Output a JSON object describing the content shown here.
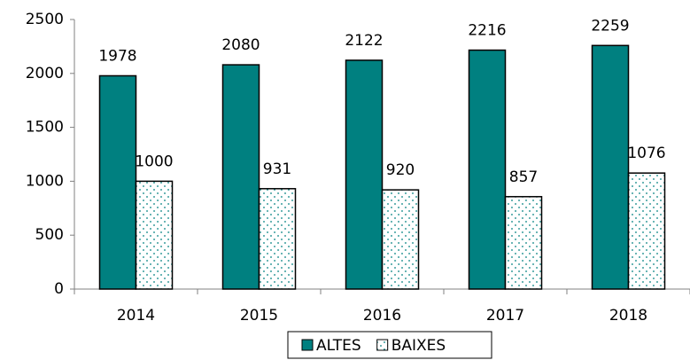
{
  "chart_data": {
    "type": "bar",
    "categories": [
      "2014",
      "2015",
      "2016",
      "2017",
      "2018"
    ],
    "series": [
      {
        "name": "ALTES",
        "color": "#008080",
        "values": [
          1978,
          2080,
          2122,
          2216,
          2259
        ]
      },
      {
        "name": "BAIXES",
        "color": "#ffffff",
        "hatch": "dots",
        "values": [
          1000,
          931,
          920,
          857,
          1076
        ]
      }
    ],
    "ylim": [
      0,
      2500
    ],
    "yticks": [
      0,
      500,
      1000,
      1500,
      2000,
      2500
    ],
    "legend": "bottom"
  }
}
